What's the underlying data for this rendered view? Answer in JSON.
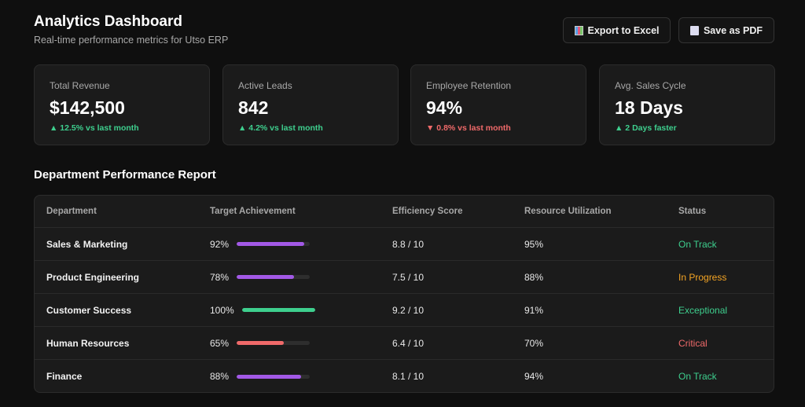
{
  "header": {
    "title": "Analytics Dashboard",
    "subtitle": "Real-time performance metrics for Utso ERP",
    "export_label": "Export to Excel",
    "pdf_label": "Save as PDF"
  },
  "kpis": [
    {
      "label": "Total Revenue",
      "value": "$142,500",
      "change": "▲ 12.5% vs last month",
      "trend": "up"
    },
    {
      "label": "Active Leads",
      "value": "842",
      "change": "▲ 4.2% vs last month",
      "trend": "up"
    },
    {
      "label": "Employee Retention",
      "value": "94%",
      "change": "▼ 0.8% vs last month",
      "trend": "down"
    },
    {
      "label": "Avg. Sales Cycle",
      "value": "18 Days",
      "change": "▲ 2 Days faster",
      "trend": "up"
    }
  ],
  "report": {
    "title": "Department Performance Report",
    "columns": [
      "Department",
      "Target Achievement",
      "Efficiency Score",
      "Resource Utilization",
      "Status"
    ],
    "rows": [
      {
        "department": "Sales & Marketing",
        "target": "92%",
        "target_value": 92,
        "bar_color": "#a259e6",
        "efficiency": "8.8 / 10",
        "utilization": "95%",
        "status": "On Track",
        "status_color": "#3ecf8e"
      },
      {
        "department": "Product Engineering",
        "target": "78%",
        "target_value": 78,
        "bar_color": "#a259e6",
        "efficiency": "7.5 / 10",
        "utilization": "88%",
        "status": "In Progress",
        "status_color": "#f5a524"
      },
      {
        "department": "Customer Success",
        "target": "100%",
        "target_value": 100,
        "bar_color": "#3ecf8e",
        "efficiency": "9.2 / 10",
        "utilization": "91%",
        "status": "Exceptional",
        "status_color": "#3ecf8e"
      },
      {
        "department": "Human Resources",
        "target": "65%",
        "target_value": 65,
        "bar_color": "#f06a6a",
        "efficiency": "6.4 / 10",
        "utilization": "70%",
        "status": "Critical",
        "status_color": "#f06a6a"
      },
      {
        "department": "Finance",
        "target": "88%",
        "target_value": 88,
        "bar_color": "#a259e6",
        "efficiency": "8.1 / 10",
        "utilization": "94%",
        "status": "On Track",
        "status_color": "#3ecf8e"
      }
    ]
  }
}
